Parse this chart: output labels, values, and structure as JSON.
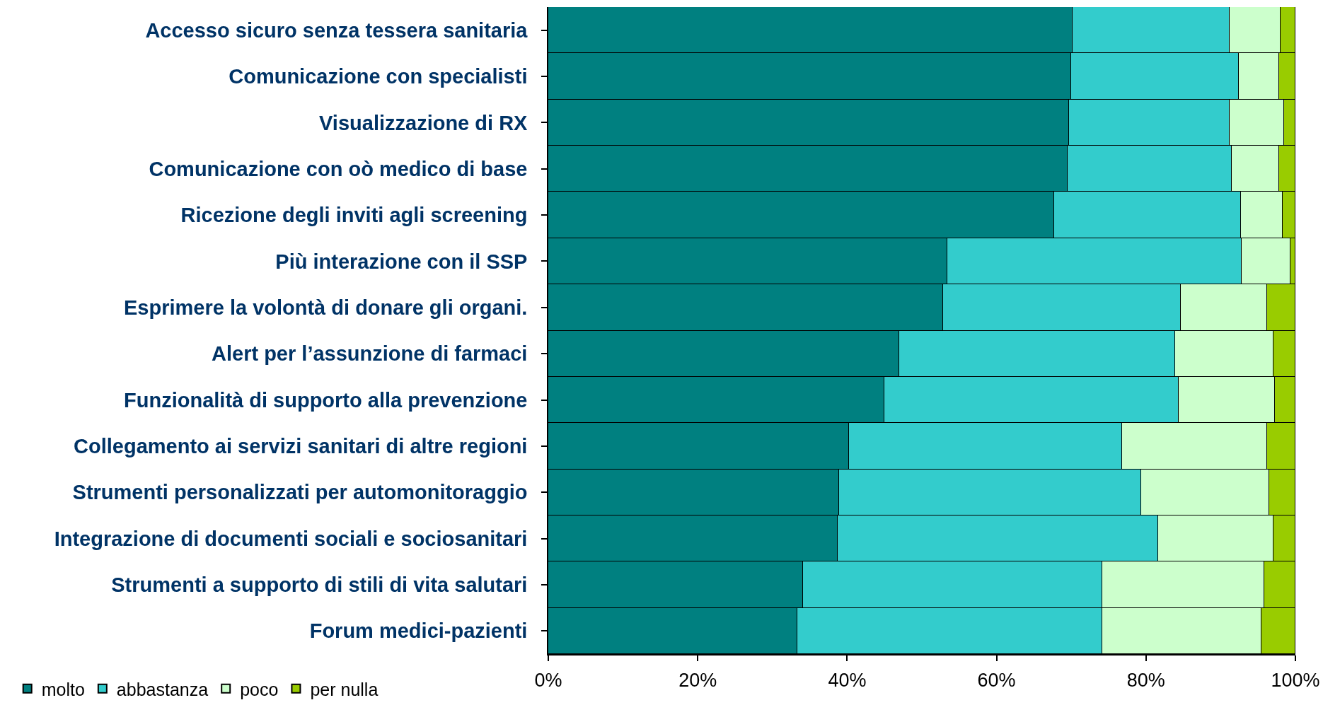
{
  "chart_data": {
    "type": "bar",
    "orientation": "horizontal",
    "stacked": true,
    "categories": [
      "Accesso sicuro senza tessera sanitaria",
      "Comunicazione con specialisti",
      "Visualizzazione di RX",
      "Comunicazione con oò medico di base",
      "Ricezione degli inviti agli screening",
      "Più interazione con il SSP",
      "Esprimere la volontà di donare gli organi.",
      "Alert per l’assunzione di farmaci",
      "Funzionalità di supporto alla prevenzione",
      "Collegamento ai servizi sanitari di altre regioni",
      "Strumenti personalizzati per automonitoraggio",
      "Integrazione di documenti sociali e sociosanitari",
      "Strumenti a supporto di stili di vita salutari",
      "Forum medici-pazienti"
    ],
    "series": [
      {
        "name": "molto",
        "color": "#008080",
        "values": [
          70.2,
          70.0,
          69.7,
          69.5,
          67.7,
          53.4,
          52.8,
          47.0,
          45.0,
          40.2,
          38.9,
          38.7,
          34.1,
          33.3
        ]
      },
      {
        "name": "abbastanza",
        "color": "#33cccc",
        "values": [
          21.0,
          22.4,
          21.5,
          22.0,
          25.0,
          39.4,
          31.9,
          36.9,
          39.4,
          36.6,
          40.5,
          42.9,
          40.0,
          40.8
        ]
      },
      {
        "name": "poco",
        "color": "#ccffcc",
        "values": [
          6.8,
          5.4,
          7.3,
          6.3,
          5.6,
          6.5,
          11.5,
          13.2,
          12.9,
          19.4,
          17.1,
          15.5,
          21.7,
          21.4
        ]
      },
      {
        "name": "per nulla",
        "color": "#99cc00",
        "values": [
          2.0,
          2.2,
          1.5,
          2.2,
          1.7,
          0.7,
          3.8,
          2.9,
          2.7,
          3.8,
          3.5,
          2.9,
          4.2,
          4.5
        ]
      }
    ],
    "xlim": [
      0,
      100
    ],
    "xticks": [
      {
        "value": 0,
        "label": "0%"
      },
      {
        "value": 20,
        "label": "20%"
      },
      {
        "value": 40,
        "label": "40%"
      },
      {
        "value": 60,
        "label": "60%"
      },
      {
        "value": 80,
        "label": "80%"
      },
      {
        "value": 100,
        "label": "100%"
      }
    ],
    "legend": "bottom left"
  }
}
